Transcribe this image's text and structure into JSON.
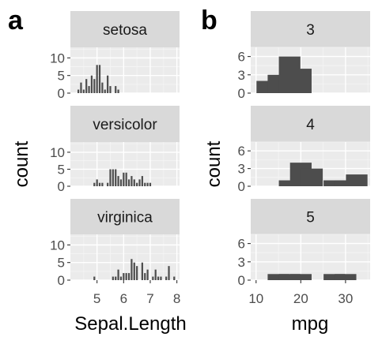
{
  "figure": {
    "panel_a_label": "a",
    "panel_b_label": "b"
  },
  "colors": {
    "panel_bg": "#ebebeb",
    "grid_major": "#ffffff",
    "grid_minor": "#f5f5f5",
    "strip_bg": "#d9d9d9",
    "bar_fill": "#4d4d4d",
    "tick_text": "#4d4d4d",
    "tick_line": "#333333"
  },
  "chart_data": [
    {
      "type": "bar",
      "facet_by": "Species",
      "xlabel": "Sepal.Length",
      "ylabel": "count",
      "xlim": [
        4.0,
        8.1
      ],
      "ylim": [
        0,
        13
      ],
      "x_ticks": [
        5,
        6,
        7,
        8
      ],
      "x_tick_labels": [
        "5",
        "6",
        "7",
        "8"
      ],
      "y_ticks": [
        0,
        5,
        10
      ],
      "y_tick_labels": [
        "0",
        "5",
        "10"
      ],
      "grid": true,
      "facets": [
        {
          "label": "setosa",
          "x": [
            4.3,
            4.4,
            4.5,
            4.6,
            4.7,
            4.8,
            4.9,
            5.0,
            5.1,
            5.2,
            5.3,
            5.4,
            5.5,
            5.6,
            5.7,
            5.8
          ],
          "values": [
            1,
            3,
            1,
            4,
            2,
            5,
            4,
            8,
            8,
            3,
            1,
            5,
            2,
            0,
            2,
            1
          ]
        },
        {
          "label": "versicolor",
          "x": [
            4.9,
            5.0,
            5.1,
            5.2,
            5.3,
            5.4,
            5.5,
            5.6,
            5.7,
            5.8,
            5.9,
            6.0,
            6.1,
            6.2,
            6.3,
            6.4,
            6.5,
            6.6,
            6.7,
            6.8,
            6.9,
            7.0
          ],
          "values": [
            1,
            2,
            1,
            1,
            0,
            1,
            5,
            5,
            5,
            3,
            2,
            4,
            4,
            2,
            3,
            2,
            1,
            2,
            3,
            1,
            1,
            1
          ]
        },
        {
          "label": "virginica",
          "x": [
            4.9,
            5.6,
            5.7,
            5.8,
            5.9,
            6.0,
            6.1,
            6.2,
            6.3,
            6.4,
            6.5,
            6.7,
            6.8,
            6.9,
            7.1,
            7.2,
            7.3,
            7.4,
            7.6,
            7.7,
            7.9
          ],
          "values": [
            1,
            1,
            1,
            3,
            1,
            2,
            2,
            2,
            6,
            5,
            4,
            5,
            2,
            3,
            1,
            3,
            1,
            1,
            1,
            4,
            1
          ]
        }
      ]
    },
    {
      "type": "bar",
      "facet_by": "gear",
      "xlabel": "mpg",
      "ylabel": "count",
      "xlim": [
        8.8,
        35.5
      ],
      "ylim": [
        0,
        7.5
      ],
      "bin_width": 5,
      "x_ticks": [
        10,
        20,
        30
      ],
      "x_tick_labels": [
        "10",
        "20",
        "30"
      ],
      "y_ticks": [
        0,
        3,
        6
      ],
      "y_tick_labels": [
        "0",
        "3",
        "6"
      ],
      "grid": true,
      "facets": [
        {
          "label": "3",
          "x": [
            12.5,
            15,
            17.5,
            20,
            22.5,
            25,
            27.5,
            30,
            32.5
          ],
          "values": [
            2,
            3,
            6,
            4,
            0,
            0,
            0,
            0,
            0
          ]
        },
        {
          "label": "4",
          "x": [
            12.5,
            15,
            17.5,
            20,
            22.5,
            25,
            27.5,
            30,
            32.5
          ],
          "values": [
            0,
            0,
            1,
            4,
            3,
            0,
            1,
            1,
            2
          ]
        },
        {
          "label": "5",
          "x": [
            12.5,
            15,
            17.5,
            20,
            22.5,
            25,
            27.5,
            30,
            32.5
          ],
          "values": [
            0,
            1,
            1,
            1,
            0,
            0,
            1,
            1,
            0
          ]
        }
      ]
    }
  ]
}
